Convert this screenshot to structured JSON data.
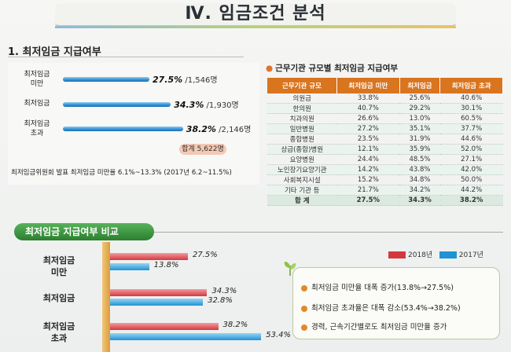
{
  "title": "Ⅳ. 임금조건 분석",
  "section1": {
    "heading": "1. 최저임금 지급여부",
    "rows": [
      {
        "label": "최저임금\n미만",
        "percent": "27.5%",
        "count": "/1,546명",
        "value": 27.5
      },
      {
        "label": "최저임금",
        "percent": "34.3%",
        "count": "/1,930명",
        "value": 34.3
      },
      {
        "label": "최저임금\n초과",
        "percent": "38.2%",
        "count": "/2,146명",
        "value": 38.2
      }
    ],
    "total": "합계 5,622명",
    "note": "최저임금위원회 발표 최저임금 미만율 6.1%~13.3% (2017년 6.2~11.5%)"
  },
  "section2": {
    "heading": "근무기관 규모별 최저임금 지급여부",
    "columns": [
      "근무기관 규모",
      "최저임금 미만",
      "최저임금",
      "최저임금 초과"
    ],
    "rows": [
      [
        "의원급",
        "33.8%",
        "25.6%",
        "40.6%"
      ],
      [
        "한의원",
        "40.7%",
        "29.2%",
        "30.1%"
      ],
      [
        "치과의원",
        "26.6%",
        "13.0%",
        "60.5%"
      ],
      [
        "일반병원",
        "27.2%",
        "35.1%",
        "37.7%"
      ],
      [
        "종합병원",
        "23.5%",
        "31.9%",
        "44.6%"
      ],
      [
        "상급(종합)병원",
        "12.1%",
        "35.9%",
        "52.0%"
      ],
      [
        "요양병원",
        "24.4%",
        "48.5%",
        "27.1%"
      ],
      [
        "노인장기요양기관",
        "14.2%",
        "43.8%",
        "42.0%"
      ],
      [
        "사회복지시설",
        "15.2%",
        "34.8%",
        "50.0%"
      ],
      [
        "기타 기관 등",
        "21.7%",
        "34.2%",
        "44.2%"
      ]
    ],
    "total_row": [
      "합 계",
      "27.5%",
      "34.3%",
      "38.2%"
    ]
  },
  "section3": {
    "heading": "최저임금 지급여부 비교",
    "legend": [
      {
        "name": "2018년",
        "color": "#d4383f"
      },
      {
        "name": "2017년",
        "color": "#1f93d4"
      }
    ],
    "groups": [
      {
        "label": "최저임금\n미만",
        "v2018": "27.5%",
        "v2017": "13.8%",
        "n2018": 27.5,
        "n2017": 13.8
      },
      {
        "label": "최저임금",
        "v2018": "34.3%",
        "v2017": "32.8%",
        "n2018": 34.3,
        "n2017": 32.8
      },
      {
        "label": "최저임금\n초과",
        "v2018": "38.2%",
        "v2017": "53.4%",
        "n2018": 38.2,
        "n2017": 53.4
      }
    ],
    "bullets": [
      "최저임금 미만율 대폭 증가(13.8%→27.5%)",
      "최저임금 초과율은 대폭 감소(53.4%→38.2%)",
      "경력, 근속기간별로도 최저임금 미만율 증가"
    ]
  },
  "chart_data": [
    {
      "type": "bar",
      "categories": [
        "최저임금 미만",
        "최저임금",
        "최저임금 초과"
      ],
      "values": [
        27.5,
        34.3,
        38.2
      ],
      "title": "1. 최저임금 지급여부",
      "xlabel": "",
      "ylabel": ""
    },
    {
      "type": "bar",
      "categories": [
        "최저임금 미만",
        "최저임금",
        "최저임금 초과"
      ],
      "series": [
        {
          "name": "2018년",
          "values": [
            27.5,
            34.3,
            38.2
          ]
        },
        {
          "name": "2017년",
          "values": [
            13.8,
            32.8,
            53.4
          ]
        }
      ],
      "title": "최저임금 지급여부 비교",
      "legend": "top-right"
    }
  ]
}
